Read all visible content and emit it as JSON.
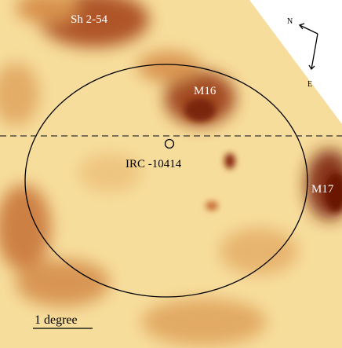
{
  "regions": [
    "Sh 2-54",
    "M16",
    "M17"
  ],
  "compass": {
    "north": "N",
    "east": "E"
  },
  "target": "IRC -10414",
  "scale_bar": "1 degree"
}
